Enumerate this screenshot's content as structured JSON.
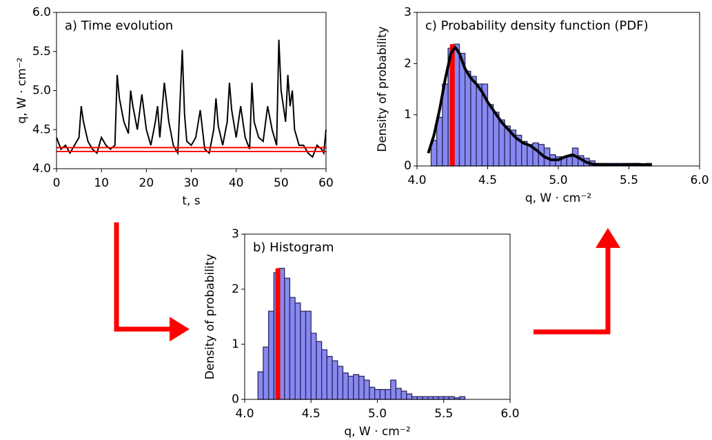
{
  "chart_data": [
    {
      "type": "line",
      "title": "a) Time evolution",
      "xlabel": "t, s",
      "ylabel": "q, W · cm⁻²",
      "x": [
        0,
        1,
        2,
        3,
        4,
        5,
        5.5,
        6,
        7,
        8,
        9,
        10,
        11,
        12,
        13,
        13.5,
        14,
        15,
        16,
        16.5,
        17,
        18,
        19,
        20,
        21,
        22,
        22.5,
        23,
        24,
        25,
        26,
        27,
        28,
        28.5,
        29,
        30,
        31,
        32,
        33,
        34,
        35,
        35.5,
        36,
        37,
        38,
        38.5,
        39,
        40,
        41,
        42,
        43,
        43.5,
        44,
        45,
        46,
        47,
        48,
        49,
        49.5,
        50,
        51,
        51.5,
        52,
        52.5,
        53,
        54,
        55,
        56,
        57,
        58,
        59,
        59.5,
        60
      ],
      "series": [
        {
          "color": "#000000",
          "values": [
            4.4,
            4.25,
            4.3,
            4.2,
            4.3,
            4.4,
            4.8,
            4.6,
            4.35,
            4.25,
            4.2,
            4.4,
            4.3,
            4.25,
            4.3,
            5.2,
            4.9,
            4.6,
            4.45,
            5.0,
            4.8,
            4.5,
            4.95,
            4.5,
            4.3,
            4.6,
            4.8,
            4.4,
            5.1,
            4.6,
            4.3,
            4.2,
            5.52,
            4.7,
            4.35,
            4.3,
            4.4,
            4.75,
            4.25,
            4.2,
            4.5,
            4.9,
            4.55,
            4.3,
            4.6,
            5.1,
            4.75,
            4.4,
            4.8,
            4.4,
            4.25,
            5.1,
            4.6,
            4.4,
            4.35,
            4.8,
            4.5,
            4.3,
            5.65,
            5.0,
            4.6,
            5.2,
            4.8,
            5.0,
            4.5,
            4.3,
            4.3,
            4.2,
            4.15,
            4.3,
            4.25,
            4.2,
            4.5
          ]
        }
      ],
      "hlines": [
        4.22,
        4.27
      ],
      "hline_color": "#ff0000",
      "xlim": [
        0,
        60
      ],
      "xticks": [
        0,
        10,
        20,
        30,
        40,
        50,
        60
      ],
      "ylim": [
        4,
        6
      ],
      "yticks": [
        {
          "value": 4,
          "label": "4.0"
        },
        4.5,
        {
          "value": 5,
          "label": "5.0"
        },
        5.5,
        {
          "value": 6,
          "label": "6.0"
        }
      ]
    },
    {
      "type": "histogram",
      "title": "b) Histogram",
      "xlabel": "q, W · cm⁻²",
      "ylabel": "Density of probability",
      "color": "#7373f0",
      "bins": [
        4.1,
        4.14,
        4.18,
        4.22,
        4.26,
        4.3,
        4.34,
        4.38,
        4.42,
        4.46,
        4.5,
        4.54,
        4.58,
        4.62,
        4.66,
        4.7,
        4.74,
        4.78,
        4.82,
        4.86,
        4.9,
        4.94,
        4.98,
        5.02,
        5.06,
        5.1,
        5.14,
        5.18,
        5.22,
        5.26,
        5.3,
        5.34,
        5.38,
        5.42,
        5.46,
        5.5,
        5.54,
        5.58,
        5.62,
        5.66
      ],
      "values": [
        0.5,
        0.95,
        1.6,
        2.3,
        2.38,
        2.2,
        1.85,
        1.75,
        1.6,
        1.6,
        1.2,
        1.05,
        0.9,
        0.78,
        0.7,
        0.6,
        0.48,
        0.42,
        0.45,
        0.42,
        0.35,
        0.22,
        0.18,
        0.18,
        0.18,
        0.35,
        0.2,
        0.15,
        0.1,
        0.05,
        0.05,
        0.05,
        0.05,
        0.05,
        0.05,
        0.05,
        0.05,
        0.03,
        0.05
      ],
      "highlight": {
        "x": 4.25,
        "y": 2.38,
        "color": "#ff0000"
      },
      "xlim": [
        4,
        6
      ],
      "xticks": [
        {
          "value": 4,
          "label": "4.0"
        },
        4.5,
        {
          "value": 5,
          "label": "5.0"
        },
        5.5,
        {
          "value": 6,
          "label": "6.0"
        }
      ],
      "ylim": [
        0,
        3
      ],
      "yticks": [
        0,
        1,
        2,
        3
      ]
    },
    {
      "type": "histogram",
      "title": "c) Probability density function (PDF)",
      "xlabel": "q, W · cm⁻²",
      "ylabel": "Density of probability",
      "color": "#7373f0",
      "bins": [
        4.1,
        4.14,
        4.18,
        4.22,
        4.26,
        4.3,
        4.34,
        4.38,
        4.42,
        4.46,
        4.5,
        4.54,
        4.58,
        4.62,
        4.66,
        4.7,
        4.74,
        4.78,
        4.82,
        4.86,
        4.9,
        4.94,
        4.98,
        5.02,
        5.06,
        5.1,
        5.14,
        5.18,
        5.22,
        5.26,
        5.3,
        5.34,
        5.38,
        5.42,
        5.46,
        5.5,
        5.54,
        5.58,
        5.62,
        5.66
      ],
      "values": [
        0.5,
        0.95,
        1.6,
        2.3,
        2.38,
        2.2,
        1.85,
        1.75,
        1.6,
        1.6,
        1.2,
        1.05,
        0.9,
        0.78,
        0.7,
        0.6,
        0.48,
        0.42,
        0.45,
        0.42,
        0.35,
        0.22,
        0.18,
        0.18,
        0.18,
        0.35,
        0.2,
        0.15,
        0.1,
        0.05,
        0.05,
        0.05,
        0.05,
        0.05,
        0.05,
        0.05,
        0.05,
        0.03,
        0.05
      ],
      "highlight": {
        "x": 4.25,
        "y": 2.38,
        "color": "#ff0000"
      },
      "kde": {
        "color": "#000000",
        "x": [
          4.08,
          4.12,
          4.16,
          4.2,
          4.24,
          4.27,
          4.3,
          4.34,
          4.38,
          4.42,
          4.46,
          4.5,
          4.55,
          4.6,
          4.65,
          4.7,
          4.75,
          4.8,
          4.85,
          4.9,
          4.95,
          5.0,
          5.05,
          5.1,
          5.15,
          5.2,
          5.25,
          5.35,
          5.45,
          5.55,
          5.66
        ],
        "y": [
          0.25,
          0.6,
          1.1,
          1.7,
          2.2,
          2.32,
          2.2,
          1.9,
          1.72,
          1.6,
          1.45,
          1.25,
          1.05,
          0.85,
          0.7,
          0.55,
          0.45,
          0.4,
          0.3,
          0.18,
          0.12,
          0.12,
          0.18,
          0.22,
          0.15,
          0.07,
          0.03,
          0.02,
          0.02,
          0.03,
          0.02
        ]
      },
      "xlim": [
        4,
        6
      ],
      "xticks": [
        {
          "value": 4,
          "label": "4.0"
        },
        4.5,
        {
          "value": 5,
          "label": "5.0"
        },
        5.5,
        {
          "value": 6,
          "label": "6.0"
        }
      ],
      "ylim": [
        0,
        3
      ],
      "yticks": [
        0,
        1,
        2,
        3
      ]
    }
  ]
}
